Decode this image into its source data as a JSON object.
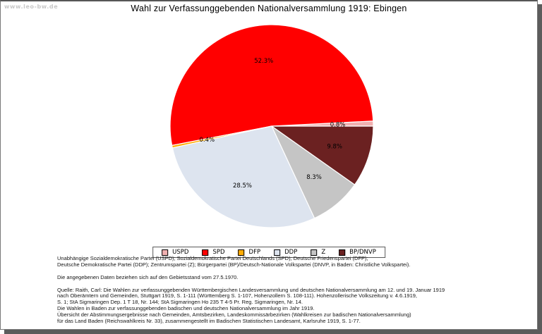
{
  "site": {
    "watermark": "www.leo-bw.de"
  },
  "chart_data": {
    "type": "pie",
    "title": "Wahl zur Verfassunggebenden Nationalversammlung 1919: Ebingen",
    "start_angle_deg": 0,
    "direction": "counterclockwise",
    "label_distance": 0.65,
    "legend_position": "bottom",
    "slice_stroke_color": "#ffffff",
    "slices": [
      {
        "label": "USPD",
        "value": 0.8,
        "percent_label": "0.8%",
        "color": "#f0b0b0"
      },
      {
        "label": "SPD",
        "value": 52.3,
        "percent_label": "52.3%",
        "color": "#ff0000"
      },
      {
        "label": "DFP",
        "value": 0.4,
        "percent_label": "0.4%",
        "color": "#ffac04"
      },
      {
        "label": "DDP",
        "value": 28.5,
        "percent_label": "28.5%",
        "color": "#dde4ef"
      },
      {
        "label": "Z",
        "value": 8.3,
        "percent_label": "8.3%",
        "color": "#c5c5c5"
      },
      {
        "label": "BP/DNVP",
        "value": 9.8,
        "percent_label": "9.8%",
        "color": "#6b2121"
      }
    ]
  },
  "notes": {
    "abbreviations": [
      "Unabhängige Sozialdemokratische Partei (USPD); Sozialdemokratische Partei Deutschlands (SPD); Deutsche Friedenspartei (DFP);",
      "Deutsche Demokratische Partei (DDP); Zentrumspartei (Z); Bürgerpartei (BP)/Deutsch-Nationale Volkspartei (DNVP, in Baden: Christliche Volkspartei)."
    ],
    "basis": "Die angegebenen Daten beziehen sich auf den Gebietsstand vom 27.5.1970.",
    "source": [
      "Quelle: Raith, Carl: Die Wahlen zur verfassunggebenden Württembergischen Landesversammlung und deutschen Nationalversammlung am 12. und 19. Januar 1919",
      "nach Oberämtern und Gemeinden, Stuttgart 1919, S. 1-111 (Württemberg S. 1-107, Hohenzollern S. 108-111). Hohenzollerische Volkszeitung v. 4.6.1919,",
      "S. 1; StA Sigmaringen Dep. 1 T 18, Nr. 144; StA Sigmaringen Ho 235 T 4-5 Pr. Reg. Sigmaringen, Nr. 14.",
      "Die Wahlen in Baden zur verfassunggebenden badischen und deutschen Nationalversammlung im Jahr 1919.",
      "Übersicht der Abstimmungsergebnisse nach Gemeinden, Amtsbezirken, Landeskommissärbezirken (Wahlkreisen zur badischen Nationalversammlung)",
      "für das Land Baden (Reichswahlkreis Nr. 33), zusammengestellt im Badischen Statistischen Landesamt, Karlsruhe 1919, S. 1-77."
    ]
  }
}
